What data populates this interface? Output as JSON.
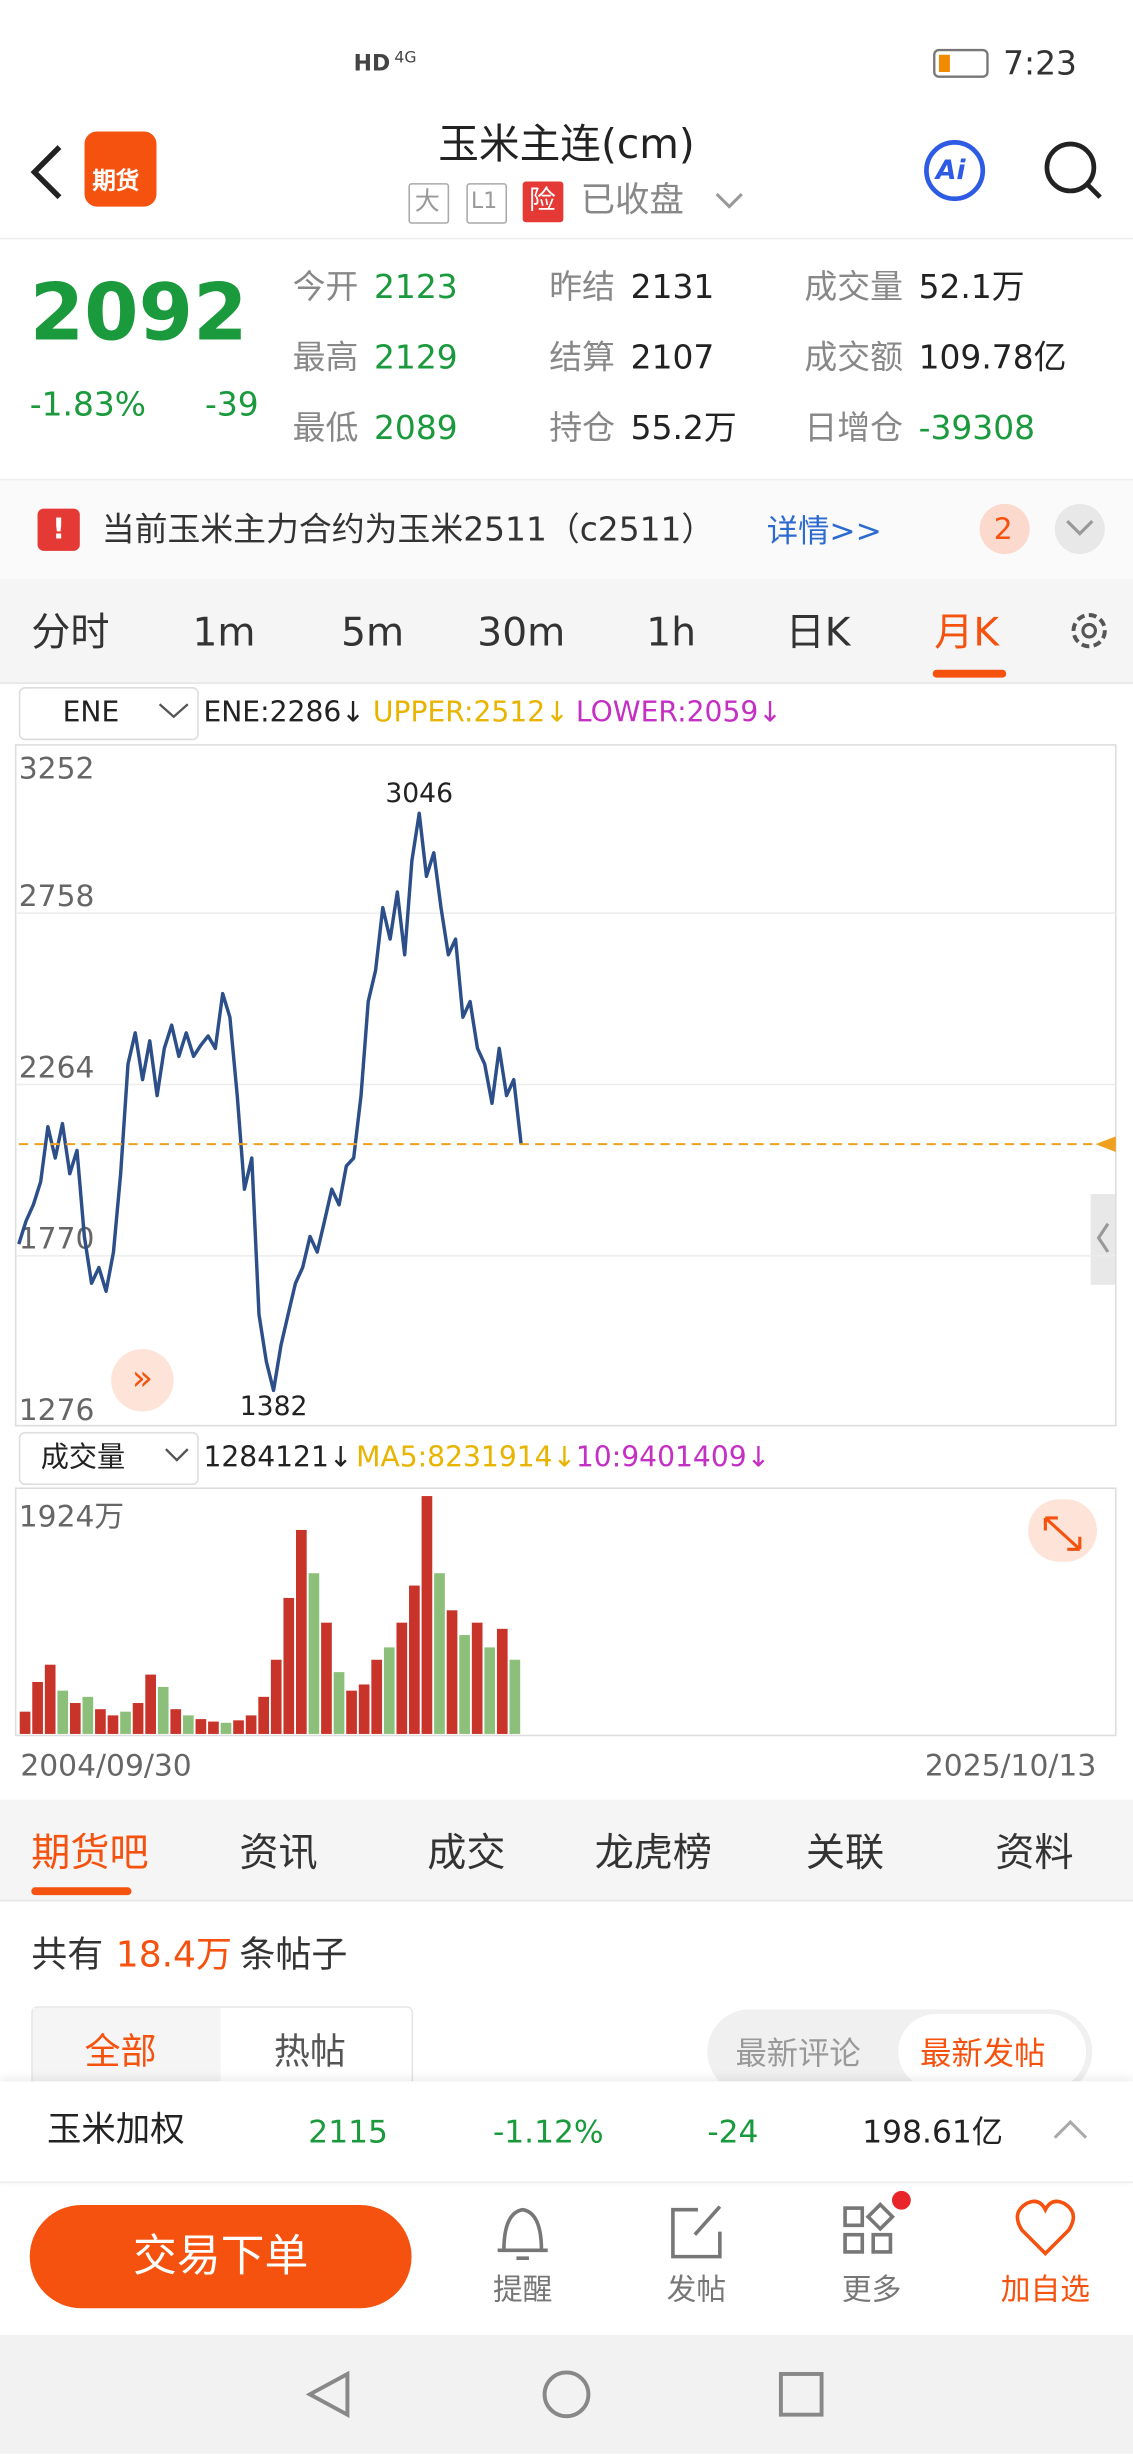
{
  "status_bar": {
    "hd": "HD",
    "net": "4G",
    "time": "7:23"
  },
  "header": {
    "logo": "期货",
    "title": "玉米主连(cm)",
    "tags": [
      "大",
      "L1",
      "险"
    ],
    "market_state": "已收盘",
    "ai": "Ai"
  },
  "quote": {
    "price": "2092",
    "change_pct": "-1.83%",
    "change": "-39",
    "stats": [
      {
        "label": "今开",
        "value": "2123",
        "color": "#1a9a3c"
      },
      {
        "label": "昨结",
        "value": "2131",
        "color": "#222222"
      },
      {
        "label": "成交量",
        "value": "52.1万",
        "color": "#222222"
      },
      {
        "label": "最高",
        "value": "2129",
        "color": "#1a9a3c"
      },
      {
        "label": "结算",
        "value": "2107",
        "color": "#222222"
      },
      {
        "label": "成交额",
        "value": "109.78亿",
        "color": "#222222"
      },
      {
        "label": "最低",
        "value": "2089",
        "color": "#1a9a3c"
      },
      {
        "label": "持仓",
        "value": "55.2万",
        "color": "#222222"
      },
      {
        "label": "日增仓",
        "value": "-39308",
        "color": "#1a9a3c"
      }
    ]
  },
  "notice": {
    "text": "当前玉米主力合约为玉米2511（c2511）",
    "link": "详情>>",
    "badge": "2"
  },
  "period_tabs": {
    "items": [
      "分时",
      "1m",
      "5m",
      "30m",
      "1h",
      "日K",
      "月K"
    ],
    "active": 6
  },
  "indicator": {
    "select": "ENE",
    "items": [
      {
        "text": "ENE:2286↓",
        "color": "#222222"
      },
      {
        "text": "UPPER:2512↓",
        "color": "#e8b400"
      },
      {
        "text": "LOWER:2059↓",
        "color": "#c42fc4"
      }
    ]
  },
  "chart_data": {
    "type": "line",
    "yticks": [
      3252,
      2758,
      2264,
      1770,
      1276
    ],
    "ylim": [
      1276,
      3252
    ],
    "grid": true,
    "color": "#2c4f8a",
    "last_color": "#f0a020",
    "max": 3046,
    "min": 1382,
    "values": [
      1804,
      1871,
      1917,
      1984,
      2142,
      2052,
      2151,
      2007,
      2074,
      1826,
      1691,
      1736,
      1668,
      1781,
      2007,
      2323,
      2413,
      2278,
      2390,
      2232,
      2368,
      2435,
      2345,
      2413,
      2345,
      2377,
      2404,
      2368,
      2526,
      2458,
      2232,
      1962,
      2052,
      1601,
      1465,
      1382,
      1511,
      1601,
      1691,
      1736,
      1826,
      1781,
      1871,
      1962,
      1917,
      2029,
      2052,
      2232,
      2503,
      2593,
      2774,
      2683,
      2819,
      2638,
      2909,
      3046,
      2864,
      2932,
      2774,
      2638,
      2683,
      2458,
      2503,
      2368,
      2323,
      2210,
      2368,
      2232,
      2278,
      2092
    ]
  },
  "volume_bar": {
    "select": "成交量",
    "items": [
      {
        "text": "1284121↓",
        "color": "#222222"
      },
      {
        "text": "MA5:8231914↓",
        "color": "#e8b400"
      },
      {
        "text": "10:9401409↓",
        "color": "#c42fc4"
      }
    ]
  },
  "volume_chart": {
    "type": "bar",
    "yticks": [
      {
        "value": 1924,
        "label": "1924万"
      }
    ],
    "ylim": [
      0,
      1924
    ],
    "values": [
      180,
      420,
      560,
      350,
      250,
      300,
      200,
      150,
      180,
      250,
      480,
      380,
      200,
      150,
      120,
      100,
      90,
      110,
      150,
      300,
      600,
      1100,
      1650,
      1300,
      900,
      500,
      350,
      400,
      600,
      700,
      900,
      1200,
      1924,
      1300,
      1000,
      800,
      900,
      700,
      850,
      600
    ],
    "colors": [
      "#c8332a",
      "#c8332a",
      "#c8332a",
      "#8cc07a",
      "#c8332a",
      "#8cc07a",
      "#c8332a",
      "#c8332a",
      "#8cc07a",
      "#c8332a",
      "#c8332a",
      "#8cc07a",
      "#c8332a",
      "#8cc07a",
      "#c8332a",
      "#c8332a",
      "#8cc07a",
      "#c8332a",
      "#c8332a",
      "#c8332a",
      "#c8332a",
      "#c8332a",
      "#c8332a",
      "#8cc07a",
      "#c8332a",
      "#8cc07a",
      "#c8332a",
      "#c8332a",
      "#c8332a",
      "#8cc07a",
      "#c8332a",
      "#c8332a",
      "#c8332a",
      "#8cc07a",
      "#c8332a",
      "#8cc07a",
      "#c8332a",
      "#8cc07a",
      "#c8332a",
      "#8cc07a"
    ],
    "x_start": "2004/09/30",
    "x_end": "2025/10/13"
  },
  "section_tabs": {
    "items": [
      "期货吧",
      "资讯",
      "成交",
      "龙虎榜",
      "关联",
      "资料"
    ],
    "active": 0
  },
  "posts": {
    "prefix": "共有",
    "count": "18.4万",
    "suffix": "条帖子"
  },
  "filters": {
    "left": [
      "全部",
      "热帖"
    ],
    "right": [
      "最新评论",
      "最新发帖"
    ]
  },
  "related": {
    "name": "玉米加权",
    "price": "2115",
    "change_pct": "-1.12%",
    "change": "-24",
    "amount": "198.61亿"
  },
  "bottom_nav": {
    "trade": "交易下单",
    "items": [
      "提醒",
      "发帖",
      "更多",
      "加自选"
    ]
  }
}
